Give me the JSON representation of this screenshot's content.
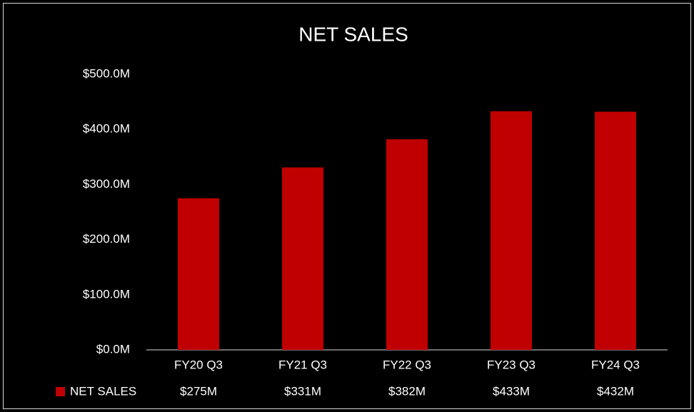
{
  "chart_data": {
    "type": "bar",
    "title": "NET SALES",
    "categories": [
      "FY20 Q3",
      "FY21 Q3",
      "FY22 Q3",
      "FY23 Q3",
      "FY24 Q3"
    ],
    "series": [
      {
        "name": "NET SALES",
        "color": "#c00000",
        "values": [
          275,
          331,
          382,
          433,
          432
        ],
        "value_labels": [
          "$275M",
          "$331M",
          "$382M",
          "$433M",
          "$432M"
        ]
      }
    ],
    "ylim": [
      0,
      500
    ],
    "yticks": [
      {
        "value": 0,
        "label": "$0.0M"
      },
      {
        "value": 100,
        "label": "$100.0M"
      },
      {
        "value": 200,
        "label": "$200.0M"
      },
      {
        "value": 300,
        "label": "$300.0M"
      },
      {
        "value": 400,
        "label": "$400.0M"
      },
      {
        "value": 500,
        "label": "$500.0M"
      }
    ],
    "grid": false
  }
}
